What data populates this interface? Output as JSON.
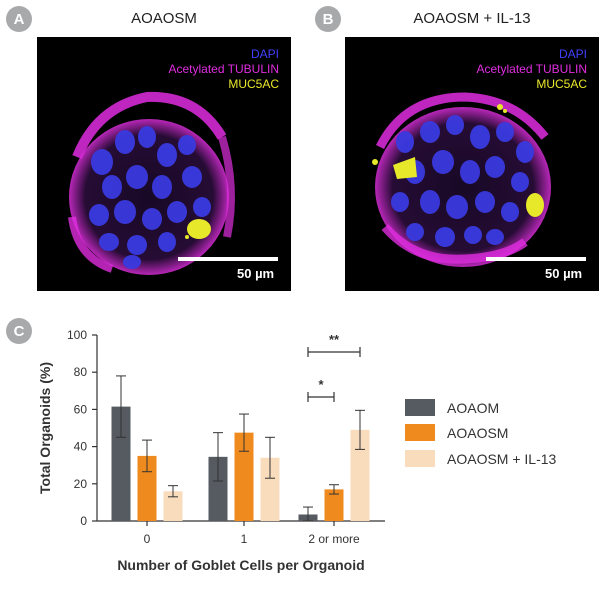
{
  "panels": [
    {
      "badge": "A",
      "title": "AOAOSM",
      "stains": [
        {
          "label": "DAPI",
          "color": "#4040ff"
        },
        {
          "label": "Acetylated TUBULIN",
          "color": "#e02de0"
        },
        {
          "label": "MUC5AC",
          "color": "#e8e82a"
        }
      ],
      "scale_label": "50 µm"
    },
    {
      "badge": "B",
      "title": "AOAOSM + IL-13",
      "stains": [
        {
          "label": "DAPI",
          "color": "#4040ff"
        },
        {
          "label": "Acetylated TUBULIN",
          "color": "#e02de0"
        },
        {
          "label": "MUC5AC",
          "color": "#e8e82a"
        }
      ],
      "scale_label": "50 µm"
    }
  ],
  "chart_badge": "C",
  "chart_data": {
    "type": "bar",
    "categories": [
      "0",
      "1",
      "2 or more"
    ],
    "series": [
      {
        "name": "AOAOM",
        "color": "#555b60",
        "values": [
          61.5,
          34.5,
          3.5
        ],
        "errors": [
          16.5,
          13,
          4
        ]
      },
      {
        "name": "AOAOSM",
        "color": "#ef8a1e",
        "values": [
          35,
          47.5,
          17
        ],
        "errors": [
          8.5,
          10,
          2.5
        ]
      },
      {
        "name": "AOAOSM + IL-13",
        "color": "#f8dcbc",
        "values": [
          16,
          34,
          49
        ],
        "errors": [
          3,
          11,
          10.5
        ]
      }
    ],
    "xlabel": "Number of Goblet Cells per Organoid",
    "ylabel": "Total Organoids (%)",
    "ylim": [
      0,
      100
    ],
    "yticks": [
      "0",
      "20",
      "40",
      "60",
      "80",
      "100"
    ],
    "grid": false,
    "legend_position": "right",
    "significance": [
      {
        "label": "**",
        "category": "2 or more",
        "from_series": "AOAOM",
        "to_series": "AOAOSM + IL-13"
      },
      {
        "label": "*",
        "category": "2 or more",
        "from_series": "AOAOM",
        "to_series": "AOAOSM"
      }
    ]
  }
}
